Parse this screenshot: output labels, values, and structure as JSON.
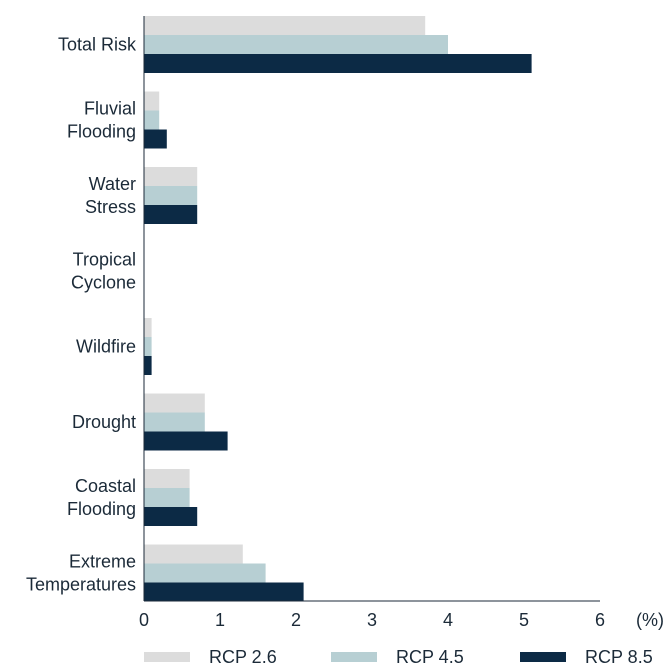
{
  "chart_data": {
    "type": "bar",
    "orientation": "horizontal",
    "categories": [
      [
        "Total Risk"
      ],
      [
        "Fluvial",
        "Flooding"
      ],
      [
        "Water",
        "Stress"
      ],
      [
        "Tropical",
        "Cyclone"
      ],
      [
        "Wildfire"
      ],
      [
        "Drought"
      ],
      [
        "Coastal",
        "Flooding"
      ],
      [
        "Extreme",
        "Temperatures"
      ]
    ],
    "series": [
      {
        "name": "RCP 2.6",
        "color": "#dcdcdc",
        "values": [
          3.7,
          0.2,
          0.7,
          0,
          0.1,
          0.8,
          0.6,
          1.3
        ]
      },
      {
        "name": "RCP 4.5",
        "color": "#b7cfd3",
        "values": [
          4.0,
          0.2,
          0.7,
          0,
          0.1,
          0.8,
          0.6,
          1.6
        ]
      },
      {
        "name": "RCP 8.5",
        "color": "#0c2a45",
        "values": [
          5.1,
          0.3,
          0.7,
          0,
          0.1,
          1.1,
          0.7,
          2.1
        ]
      }
    ],
    "xticks": [
      "0",
      "1",
      "2",
      "3",
      "4",
      "5",
      "6"
    ],
    "xlim": [
      0,
      6
    ],
    "xunit": "(%)",
    "legend_position": "bottom",
    "grid": false
  }
}
